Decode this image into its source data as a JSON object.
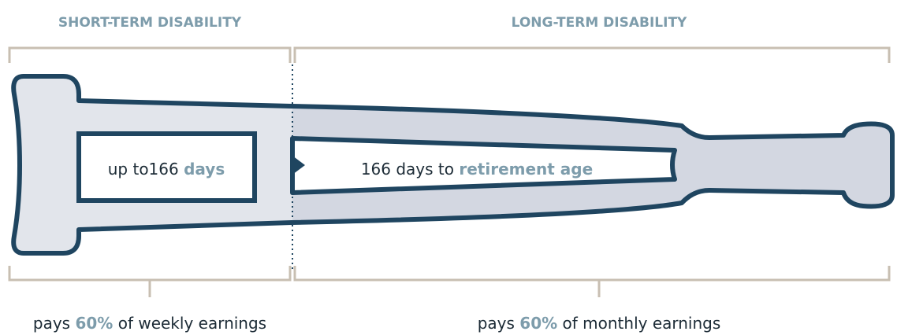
{
  "sections": [
    {
      "title": "SHORT-TERM DISABILITY",
      "duration": {
        "prefix": "up to166",
        "highlight": "days"
      },
      "pay": {
        "prefix": "pays",
        "highlight": "60%",
        "suffix": "of weekly earnings"
      }
    },
    {
      "title": "LONG-TERM DISABILITY",
      "duration": {
        "prefix": "166 days to",
        "highlight": "retirement age"
      },
      "pay": {
        "prefix": "pays",
        "highlight": "60%",
        "suffix": "of monthly earnings"
      }
    }
  ]
}
